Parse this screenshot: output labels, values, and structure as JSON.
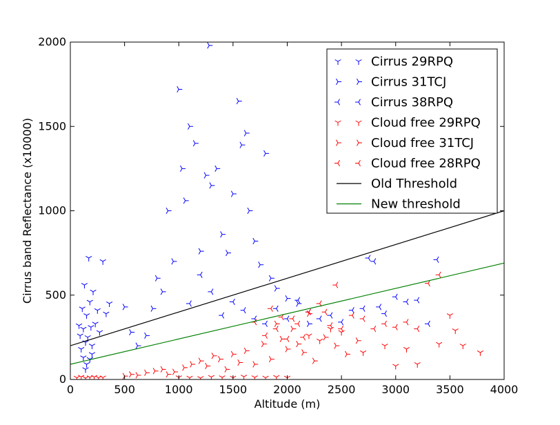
{
  "chart_data": {
    "type": "scatter",
    "title": "",
    "xlabel": "Altitude (m)",
    "ylabel": "Cirrus band Reflectance (x10000)",
    "xlim": [
      0,
      4000
    ],
    "ylim": [
      0,
      2000
    ],
    "xticks": [
      "0",
      "500",
      "1000",
      "1500",
      "2000",
      "2500",
      "3000",
      "3500",
      "4000"
    ],
    "yticks": [
      "0",
      "500",
      "1000",
      "1500",
      "2000"
    ],
    "grid": false,
    "legend_position": "top-right",
    "colors": {
      "blue": "#0000ff",
      "red": "#ff0000",
      "black": "#000000",
      "green": "#008000"
    },
    "series": [
      {
        "name": "Cirrus 29RPQ",
        "kind": "scatter",
        "marker": "tri_down",
        "color": "#0000ff",
        "points": [
          [
            80,
            320
          ],
          [
            90,
            260
          ],
          [
            100,
            180
          ],
          [
            110,
            420
          ],
          [
            120,
            300
          ],
          [
            130,
            560
          ],
          [
            140,
            220
          ],
          [
            150,
            380
          ],
          [
            160,
            250
          ],
          [
            170,
            720
          ],
          [
            180,
            460
          ],
          [
            190,
            310
          ],
          [
            200,
            200
          ],
          [
            210,
            520
          ],
          [
            230,
            330
          ],
          [
            250,
            410
          ],
          [
            270,
            280
          ],
          [
            300,
            700
          ],
          [
            330,
            390
          ],
          [
            360,
            450
          ],
          [
            150,
            90
          ],
          [
            120,
            130
          ],
          [
            200,
            150
          ],
          [
            180,
            120
          ],
          [
            140,
            60
          ]
        ]
      },
      {
        "name": "Cirrus 31TCJ",
        "kind": "scatter",
        "marker": "tri_right",
        "color": "#0000ff",
        "points": [
          [
            500,
            430
          ],
          [
            560,
            280
          ],
          [
            620,
            200
          ],
          [
            700,
            260
          ],
          [
            760,
            420
          ],
          [
            800,
            600
          ],
          [
            850,
            520
          ],
          [
            900,
            1000
          ],
          [
            950,
            700
          ],
          [
            1000,
            1720
          ],
          [
            1030,
            1250
          ],
          [
            1060,
            1060
          ],
          [
            1100,
            1500
          ],
          [
            1150,
            1400
          ],
          [
            1200,
            760
          ],
          [
            1250,
            1210
          ],
          [
            1280,
            1980
          ],
          [
            1300,
            1150
          ],
          [
            1350,
            1250
          ],
          [
            1400,
            860
          ],
          [
            1450,
            750
          ],
          [
            1500,
            1100
          ],
          [
            1550,
            1650
          ],
          [
            1580,
            1390
          ],
          [
            1620,
            1460
          ],
          [
            1650,
            1000
          ],
          [
            1700,
            820
          ],
          [
            1750,
            680
          ],
          [
            1800,
            1340
          ],
          [
            1850,
            600
          ],
          [
            1900,
            540
          ],
          [
            2000,
            480
          ],
          [
            2100,
            450
          ],
          [
            2200,
            330
          ]
        ]
      },
      {
        "name": "Cirrus 38RPQ",
        "kind": "scatter",
        "marker": "tri_left",
        "color": "#0000ff",
        "points": [
          [
            1100,
            450
          ],
          [
            1200,
            620
          ],
          [
            1300,
            520
          ],
          [
            1400,
            380
          ],
          [
            1500,
            460
          ],
          [
            1600,
            410
          ],
          [
            1700,
            360
          ],
          [
            1800,
            330
          ],
          [
            1900,
            420
          ],
          [
            2000,
            360
          ],
          [
            2100,
            470
          ],
          [
            2200,
            400
          ],
          [
            2300,
            360
          ],
          [
            2400,
            380
          ],
          [
            2500,
            340
          ],
          [
            2600,
            410
          ],
          [
            2700,
            420
          ],
          [
            2750,
            720
          ],
          [
            2800,
            700
          ],
          [
            2850,
            430
          ],
          [
            2900,
            390
          ],
          [
            3000,
            490
          ],
          [
            3100,
            460
          ],
          [
            3200,
            470
          ],
          [
            3300,
            330
          ],
          [
            3380,
            710
          ]
        ]
      },
      {
        "name": "Cloud free 29RPQ",
        "kind": "scatter",
        "marker": "tri_down",
        "color": "#ff0000",
        "points": [
          [
            60,
            10
          ],
          [
            100,
            15
          ],
          [
            140,
            8
          ],
          [
            180,
            12
          ],
          [
            220,
            14
          ],
          [
            260,
            10
          ],
          [
            300,
            11
          ],
          [
            1000,
            12
          ],
          [
            1100,
            10
          ],
          [
            1200,
            8
          ],
          [
            1300,
            14
          ],
          [
            1400,
            12
          ],
          [
            1500,
            10
          ],
          [
            1600,
            16
          ],
          [
            1700,
            12
          ],
          [
            1800,
            10
          ],
          [
            1900,
            14
          ],
          [
            2000,
            10
          ],
          [
            2200,
            260
          ],
          [
            2300,
            230
          ],
          [
            2400,
            300
          ],
          [
            2500,
            280
          ],
          [
            2700,
            160
          ],
          [
            2900,
            200
          ],
          [
            3000,
            80
          ],
          [
            3100,
            180
          ],
          [
            3200,
            90
          ],
          [
            3400,
            210
          ],
          [
            3500,
            380
          ],
          [
            3550,
            290
          ],
          [
            3620,
            200
          ],
          [
            3780,
            160
          ]
        ]
      },
      {
        "name": "Cloud free 31TCJ",
        "kind": "scatter",
        "marker": "tri_right",
        "color": "#ff0000",
        "points": [
          [
            500,
            20
          ],
          [
            560,
            30
          ],
          [
            620,
            25
          ],
          [
            700,
            40
          ],
          [
            780,
            50
          ],
          [
            850,
            60
          ],
          [
            900,
            30
          ],
          [
            960,
            45
          ],
          [
            1050,
            70
          ],
          [
            1120,
            90
          ],
          [
            1200,
            110
          ],
          [
            1260,
            80
          ],
          [
            1320,
            140
          ],
          [
            1380,
            120
          ],
          [
            1440,
            60
          ],
          [
            1500,
            150
          ],
          [
            1560,
            100
          ],
          [
            1620,
            170
          ],
          [
            1700,
            90
          ],
          [
            1780,
            210
          ],
          [
            1850,
            120
          ],
          [
            1900,
            330
          ],
          [
            1950,
            240
          ],
          [
            2000,
            180
          ],
          [
            2050,
            300
          ],
          [
            2100,
            210
          ],
          [
            2150,
            160
          ],
          [
            2200,
            390
          ],
          [
            2250,
            110
          ],
          [
            2350,
            250
          ],
          [
            2450,
            200
          ],
          [
            2550,
            150
          ],
          [
            2650,
            230
          ]
        ]
      },
      {
        "name": "Cloud free 28RPQ",
        "kind": "scatter",
        "marker": "tri_left",
        "color": "#ff0000",
        "points": [
          [
            1700,
            340
          ],
          [
            1800,
            260
          ],
          [
            1850,
            420
          ],
          [
            1900,
            300
          ],
          [
            1950,
            370
          ],
          [
            2000,
            240
          ],
          [
            2050,
            360
          ],
          [
            2100,
            330
          ],
          [
            2150,
            250
          ],
          [
            2200,
            400
          ],
          [
            2300,
            450
          ],
          [
            2350,
            400
          ],
          [
            2400,
            320
          ],
          [
            2450,
            560
          ],
          [
            2500,
            300
          ],
          [
            2600,
            380
          ],
          [
            2700,
            360
          ],
          [
            2800,
            300
          ],
          [
            2900,
            330
          ],
          [
            3000,
            310
          ],
          [
            3100,
            340
          ],
          [
            3200,
            300
          ],
          [
            3300,
            570
          ],
          [
            3400,
            620
          ]
        ]
      },
      {
        "name": "Old Threshold",
        "kind": "line",
        "color": "#000000",
        "x": [
          0,
          4000
        ],
        "y": [
          200,
          1000
        ]
      },
      {
        "name": "New threshold",
        "kind": "line",
        "color": "#008000",
        "x": [
          0,
          4000
        ],
        "y": [
          90,
          690
        ]
      }
    ]
  }
}
